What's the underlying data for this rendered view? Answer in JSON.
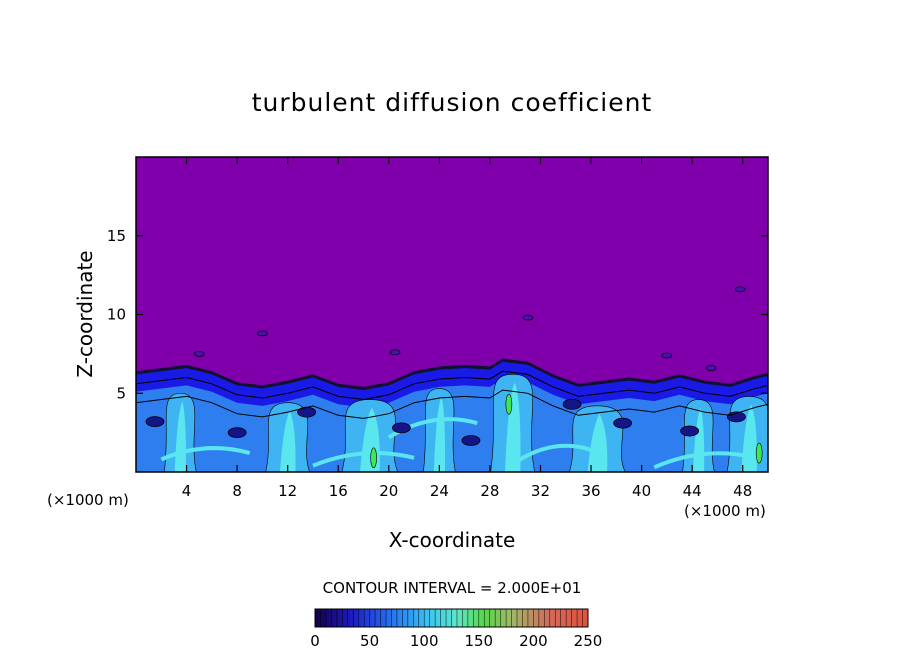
{
  "chart_data": {
    "type": "heatmap",
    "title": "turbulent diffusion coefficient",
    "xlabel": "X-coordinate",
    "ylabel": "Z-coordinate",
    "x_unit_left": "(×1000 m)",
    "x_unit_right": "(×1000 m)",
    "xlim": [
      0,
      50
    ],
    "ylim": [
      0,
      20
    ],
    "x_ticks": [
      4,
      8,
      12,
      16,
      20,
      24,
      28,
      32,
      36,
      40,
      44,
      48
    ],
    "y_ticks": [
      5,
      10,
      15
    ],
    "contour_interval_text": "CONTOUR INTERVAL = 2.000E+01",
    "contour_interval": 20,
    "colorbar": {
      "min": 0,
      "max": 250,
      "ticks": [
        0,
        50,
        100,
        150,
        200,
        250
      ]
    },
    "boundary_layer_top": [
      [
        0,
        6.2
      ],
      [
        2,
        6.4
      ],
      [
        4,
        6.6
      ],
      [
        6,
        6.2
      ],
      [
        8,
        5.5
      ],
      [
        10,
        5.3
      ],
      [
        12,
        5.6
      ],
      [
        14,
        6.0
      ],
      [
        16,
        5.4
      ],
      [
        18,
        5.2
      ],
      [
        20,
        5.5
      ],
      [
        22,
        6.2
      ],
      [
        24,
        6.5
      ],
      [
        26,
        6.6
      ],
      [
        28,
        6.5
      ],
      [
        29,
        7.0
      ],
      [
        31,
        6.8
      ],
      [
        33,
        6.0
      ],
      [
        35,
        5.4
      ],
      [
        37,
        5.6
      ],
      [
        39,
        5.8
      ],
      [
        41,
        5.6
      ],
      [
        43,
        6.0
      ],
      [
        45,
        5.6
      ],
      [
        47,
        5.4
      ],
      [
        49,
        5.9
      ],
      [
        50,
        6.1
      ]
    ],
    "plumes": [
      {
        "x": 3.5,
        "top": 5.0
      },
      {
        "x": 12.0,
        "top": 4.4
      },
      {
        "x": 18.5,
        "top": 4.6
      },
      {
        "x": 24.0,
        "top": 5.3
      },
      {
        "x": 29.8,
        "top": 6.2
      },
      {
        "x": 36.5,
        "top": 4.2
      },
      {
        "x": 44.5,
        "top": 4.6
      },
      {
        "x": 48.5,
        "top": 4.8
      }
    ],
    "colors": {
      "background_field": "#7f00aa",
      "deep_blue": "#1a1ae6",
      "mid_blue": "#2e7ef0",
      "light_blue": "#3fb4f2",
      "cyan": "#59e6ee",
      "green": "#3ee65a",
      "contour_line": "#000000"
    }
  }
}
